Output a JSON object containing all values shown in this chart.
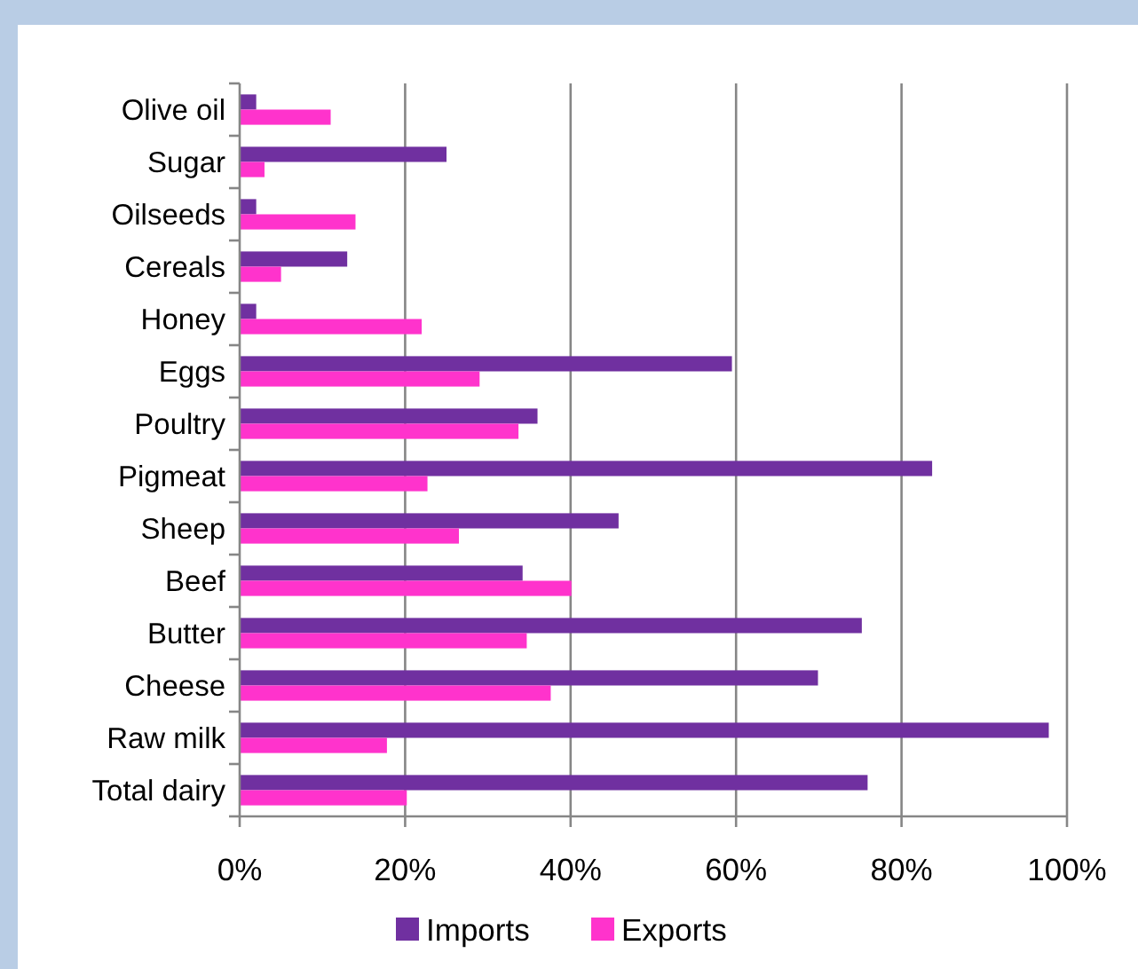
{
  "chart_data": {
    "type": "bar",
    "orientation": "horizontal",
    "categories": [
      "Olive oil",
      "Sugar",
      "Oilseeds",
      "Cereals",
      "Honey",
      "Eggs",
      "Poultry",
      "Pigmeat",
      "Sheep",
      "Beef",
      "Butter",
      "Cheese",
      "Raw milk",
      "Total dairy"
    ],
    "series": [
      {
        "name": "Imports",
        "color": "#7030a0",
        "values": [
          2,
          25,
          2,
          13,
          2,
          59.5,
          36,
          83.7,
          45.8,
          34.2,
          75.2,
          69.9,
          97.8,
          75.9
        ]
      },
      {
        "name": "Exports",
        "color": "#ff33cc",
        "values": [
          11,
          3,
          14,
          5,
          22,
          29,
          33.7,
          22.7,
          26.5,
          40.1,
          34.7,
          37.6,
          17.8,
          20.2
        ]
      }
    ],
    "xlim": [
      0,
      100
    ],
    "xticks": [
      {
        "value": 0,
        "label": "0%"
      },
      {
        "value": 20,
        "label": "20%"
      },
      {
        "value": 40,
        "label": "40%"
      },
      {
        "value": 60,
        "label": "60%"
      },
      {
        "value": 80,
        "label": "80%"
      },
      {
        "value": 100,
        "label": "100%"
      }
    ],
    "grid": "x",
    "legend": "bottom"
  }
}
